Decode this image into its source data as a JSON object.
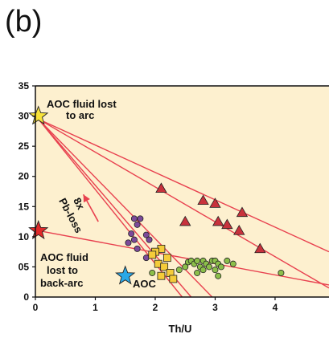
{
  "panel_label": "(b)",
  "chart_data": {
    "type": "scatter",
    "xlabel": "Th/U",
    "ylabel": "",
    "xlim": [
      0,
      4.9
    ],
    "ylim": [
      0,
      35
    ],
    "x_ticks": [
      "0",
      "1",
      "2",
      "3",
      "4"
    ],
    "y_ticks": [
      "0",
      "05",
      "10",
      "15",
      "20",
      "25",
      "30",
      "35"
    ],
    "background_color": "#fdf0cf",
    "line_color": "#e8414f",
    "annotations": [
      {
        "lines": [
          "AOC fluid lost",
          "to arc"
        ]
      },
      {
        "lines": [
          "AOC fluid",
          "lost to",
          "back-arc"
        ]
      },
      {
        "lines": [
          "AOC"
        ]
      },
      {
        "lines": [
          "8x",
          "Pb-loss"
        ]
      }
    ],
    "stars": [
      {
        "label": "AOC fluid lost to arc",
        "x": 0.05,
        "y": 30,
        "color": "#f7e23a"
      },
      {
        "label": "AOC fluid lost to back-arc",
        "x": 0.05,
        "y": 11,
        "color": "#e02a2a"
      },
      {
        "label": "AOC",
        "x": 1.5,
        "y": 3.5,
        "color": "#2aa8e6"
      }
    ],
    "lines": [
      {
        "x": [
          0.05,
          4.9
        ],
        "y": [
          29.5,
          7.5
        ]
      },
      {
        "x": [
          0.05,
          4.9
        ],
        "y": [
          29.5,
          1.5
        ]
      },
      {
        "x": [
          0.05,
          2.95
        ],
        "y": [
          29.5,
          0
        ]
      },
      {
        "x": [
          0.05,
          2.6
        ],
        "y": [
          29.5,
          0
        ]
      },
      {
        "x": [
          0.05,
          2.45
        ],
        "y": [
          29.5,
          0
        ]
      },
      {
        "x": [
          0.05,
          4.9
        ],
        "y": [
          11,
          2
        ]
      }
    ],
    "arrow": {
      "x": [
        1.05,
        0.8
      ],
      "y": [
        12.5,
        17
      ],
      "color": "#e8414f"
    },
    "series": [
      {
        "marker": "triangle",
        "color": "#c8323c",
        "points": [
          [
            2.1,
            18
          ],
          [
            2.5,
            12.5
          ],
          [
            2.8,
            16
          ],
          [
            3.0,
            15.5
          ],
          [
            3.05,
            12.5
          ],
          [
            3.2,
            12
          ],
          [
            3.4,
            11
          ],
          [
            3.45,
            14
          ],
          [
            3.75,
            8
          ]
        ]
      },
      {
        "marker": "circle",
        "color": "#7b4a9a",
        "points": [
          [
            1.65,
            13
          ],
          [
            1.75,
            13
          ],
          [
            1.7,
            12
          ],
          [
            1.6,
            10.5
          ],
          [
            1.65,
            9.5
          ],
          [
            1.7,
            8
          ],
          [
            1.85,
            10.3
          ],
          [
            1.9,
            9.5
          ],
          [
            1.55,
            9
          ],
          [
            1.85,
            6.5
          ]
        ]
      },
      {
        "marker": "square",
        "color": "#f5cc3a",
        "points": [
          [
            2.1,
            8
          ],
          [
            2.0,
            7.5
          ],
          [
            1.95,
            7
          ],
          [
            2.05,
            5.5
          ],
          [
            2.15,
            5
          ],
          [
            2.25,
            4
          ],
          [
            2.3,
            3
          ],
          [
            2.1,
            3.5
          ],
          [
            2.2,
            6.5
          ]
        ]
      },
      {
        "marker": "circle",
        "color": "#8cbf4a",
        "points": [
          [
            1.95,
            4
          ],
          [
            2.4,
            4.5
          ],
          [
            2.5,
            5
          ],
          [
            2.55,
            5.8
          ],
          [
            2.6,
            6
          ],
          [
            2.65,
            5.5
          ],
          [
            2.7,
            6
          ],
          [
            2.75,
            5
          ],
          [
            2.8,
            6
          ],
          [
            2.85,
            5.5
          ],
          [
            2.9,
            5
          ],
          [
            2.95,
            6
          ],
          [
            3.0,
            4.5
          ],
          [
            3.0,
            6
          ],
          [
            3.05,
            5.5
          ],
          [
            3.1,
            5
          ],
          [
            3.2,
            6
          ],
          [
            2.8,
            4.5
          ],
          [
            2.7,
            4
          ],
          [
            3.3,
            5.5
          ],
          [
            3.05,
            3.5
          ],
          [
            4.1,
            4
          ]
        ]
      }
    ]
  }
}
